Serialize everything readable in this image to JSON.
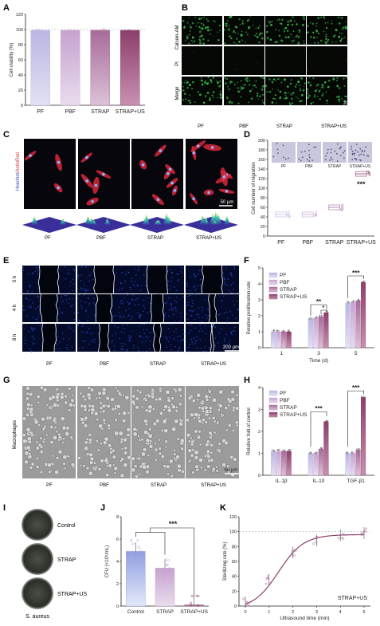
{
  "colors": {
    "pf": "#b9b6e2",
    "pbf": "#c6a2cf",
    "strap": "#a76b9a",
    "strapus": "#8b3f6a",
    "fluor_green": "#39b54a",
    "fluor_red": "#d8283b",
    "fluor_blue": "#2c47c8"
  },
  "groups": [
    "PF",
    "PBF",
    "STRAP",
    "STRAP+US"
  ],
  "panelA": {
    "letter": "A",
    "chart_data": {
      "type": "bar",
      "categories": [
        "PF",
        "PBF",
        "STRAP",
        "STRAP+US"
      ],
      "values": [
        99,
        99,
        99,
        99
      ],
      "ylabel": "Cell viability (%)",
      "ylim": [
        0,
        120
      ],
      "yticks": [
        "0",
        "20",
        "40",
        "60",
        "80",
        "100",
        "120"
      ]
    }
  },
  "panelB": {
    "letter": "B",
    "rows": [
      "Calcein-AM",
      "PI",
      "Merge"
    ],
    "scalebar": "200 μm"
  },
  "panelC": {
    "letter": "C",
    "stain_hoechst": "Hoechst",
    "stain_actin": "/ActinRed",
    "scalebar": "50 μm"
  },
  "panelD": {
    "letter": "D",
    "chart_data": {
      "type": "scatter",
      "categories": [
        "PF",
        "PBF",
        "STRAP",
        "STRAP+US"
      ],
      "means": [
        45,
        45,
        60,
        130
      ],
      "ylabel": "Cell number of migration",
      "ylim": [
        0,
        200
      ],
      "yticks": [
        "0",
        "20",
        "40",
        "60",
        "80",
        "100",
        "120",
        "140",
        "160",
        "180",
        "200"
      ],
      "significance": "***"
    }
  },
  "panelE": {
    "letter": "E",
    "rows": [
      "0 h",
      "4 h",
      "8 h"
    ],
    "scalebar": "200 μm"
  },
  "panelF": {
    "letter": "F",
    "chart_data": {
      "type": "bar",
      "categories": [
        "1",
        "3",
        "5"
      ],
      "series": [
        {
          "name": "PF",
          "values": [
            1.0,
            1.8,
            2.8
          ]
        },
        {
          "name": "PBF",
          "values": [
            1.0,
            1.85,
            2.85
          ]
        },
        {
          "name": "STRAP",
          "values": [
            1.0,
            1.95,
            2.95
          ]
        },
        {
          "name": "STRAP+US",
          "values": [
            1.0,
            2.2,
            4.1
          ]
        }
      ],
      "xlabel": "Time (d)",
      "ylabel": "Relative proliferation rate",
      "ylim": [
        0,
        5
      ],
      "yticks": [
        "0",
        "1",
        "2",
        "3",
        "4",
        "5"
      ],
      "sig": [
        "**",
        "*",
        "***"
      ]
    }
  },
  "panelG": {
    "letter": "G",
    "row_label": "Macrophages",
    "scalebar": "50 μm"
  },
  "panelH": {
    "letter": "H",
    "chart_data": {
      "type": "bar",
      "categories": [
        "IL-1β",
        "IL-10",
        "TGF-β1"
      ],
      "series": [
        {
          "name": "PF",
          "values": [
            1.1,
            1.0,
            1.0
          ]
        },
        {
          "name": "PBF",
          "values": [
            1.1,
            1.0,
            1.0
          ]
        },
        {
          "name": "STRAP",
          "values": [
            1.1,
            1.2,
            1.15
          ]
        },
        {
          "name": "STRAP+US",
          "values": [
            1.1,
            2.45,
            3.55
          ]
        }
      ],
      "ylabel": "Relative fold of control",
      "ylim": [
        0,
        4
      ],
      "yticks": [
        "0",
        "1",
        "2",
        "3",
        "4"
      ],
      "sig": [
        "***",
        "***"
      ]
    }
  },
  "panelI": {
    "letter": "I",
    "plates": [
      "Control",
      "STRAP",
      "STRAP+US"
    ],
    "organism": "S. aureus"
  },
  "panelJ": {
    "letter": "J",
    "chart_data": {
      "type": "bar",
      "categories": [
        "Control",
        "STRAP",
        "STRAP+US"
      ],
      "values": [
        4.9,
        3.4,
        0.1
      ],
      "ylabel": "CFU (×10⁵/mL)",
      "ylim": [
        0,
        8
      ],
      "yticks": [
        "0",
        "2",
        "4",
        "6",
        "8"
      ],
      "significance": "***"
    }
  },
  "panelK": {
    "letter": "K",
    "chart_data": {
      "type": "line",
      "x": [
        0,
        1,
        2,
        3,
        4,
        5
      ],
      "y": [
        5,
        35,
        72,
        88,
        95,
        98
      ],
      "xlabel": "Ultrasound time (min)",
      "ylabel": "Sterilizing rate (%)",
      "xlim": [
        0,
        5
      ],
      "ylim": [
        0,
        120
      ],
      "xticks": [
        "0",
        "1",
        "2",
        "3",
        "4",
        "5"
      ],
      "yticks": [
        "0",
        "20",
        "40",
        "60",
        "80",
        "100",
        "120"
      ],
      "annotation": "STRAP+US"
    }
  }
}
